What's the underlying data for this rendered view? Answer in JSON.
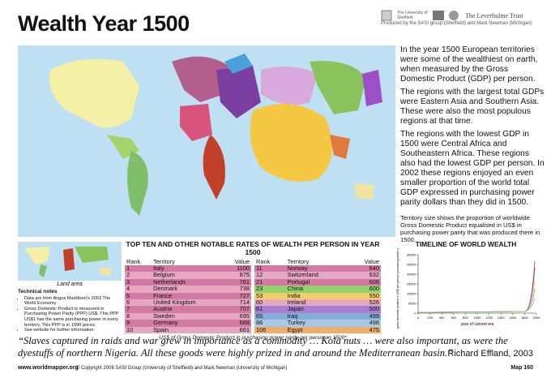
{
  "header": {
    "title": "Wealth Year 1500",
    "logo_1": "The University of Sheffield",
    "logo_2": "The Leverhulme Trust",
    "credits": "Produced by the SASI group (Sheffield) and Mark Newman (Michigan)"
  },
  "description": [
    "In the year 1500 European territories were some of the wealthiest on earth, when measured by the Gross Domestic Product (GDP) per person.",
    "The regions with the largest total GDPs were Eastern Asia and Southern Asia. These were also the most populous regions at that time.",
    "The regions with the lowest GDP in 1500 were Central Africa and Southeastern Africa. These regions also had the lowest GDP per person. In 2002 these regions enjoyed an even smaller proportion of the world total GDP expressed in purchasing power parity dollars than they did in 1500."
  ],
  "map_note": "Territory size shows the proportion of worldwide Gross Domestic Product equalised in US$ in purchasing power parity that was produced there in 1500.",
  "inset": {
    "label": "Land area"
  },
  "technical_notes": {
    "title": "Technical notes",
    "items": [
      "Data are from Angus Maddison's 2003 The World Economy",
      "Gross Domestic Product is measured in Purchasing Power Parity (PPP) US$. This PPP US$1 has the same purchasing power in every territory. This PPP is in 1990 prices.",
      "See website for further information."
    ]
  },
  "table": {
    "title": "TOP TEN AND OTHER NOTABLE RATES OF WEALTH PER PERSON IN YEAR 1500",
    "columns": [
      "Rank",
      "Territory",
      "Value"
    ],
    "rows": [
      {
        "rank": 1,
        "territory": "Italy",
        "value": 1100,
        "color": "#d27aa4"
      },
      {
        "rank": 2,
        "territory": "Belgium",
        "value": 875,
        "color": "#e6a7c3"
      },
      {
        "rank": 3,
        "territory": "Netherlands",
        "value": 761,
        "color": "#d27aa4"
      },
      {
        "rank": 4,
        "territory": "Denmark",
        "value": 738,
        "color": "#e6a7c3"
      },
      {
        "rank": 5,
        "territory": "France",
        "value": 727,
        "color": "#d27aa4"
      },
      {
        "rank": 6,
        "territory": "United Kingdom",
        "value": 714,
        "color": "#e6a7c3"
      },
      {
        "rank": 7,
        "territory": "Austria",
        "value": 707,
        "color": "#d27aa4"
      },
      {
        "rank": 8,
        "territory": "Sweden",
        "value": 695,
        "color": "#e6a7c3"
      },
      {
        "rank": 9,
        "territory": "Germany",
        "value": 688,
        "color": "#d27aa4"
      },
      {
        "rank": 10,
        "territory": "Spain",
        "value": 661,
        "color": "#e6a7c3"
      },
      {
        "rank": 11,
        "territory": "Norway",
        "value": 640,
        "color": "#d27aa4"
      },
      {
        "rank": 12,
        "territory": "Switzerland",
        "value": 632,
        "color": "#e6a7c3"
      },
      {
        "rank": 21,
        "territory": "Portugal",
        "value": 606,
        "color": "#d27aa4"
      },
      {
        "rank": 23,
        "territory": "China",
        "value": 600,
        "color": "#93cf6e"
      },
      {
        "rank": 53,
        "territory": "India",
        "value": 550,
        "color": "#f2cf66"
      },
      {
        "rank": 60,
        "territory": "Ireland",
        "value": 526,
        "color": "#e6a7c3"
      },
      {
        "rank": 61,
        "territory": "Japan",
        "value": 500,
        "color": "#a67fcf"
      },
      {
        "rank": 65,
        "territory": "Iraq",
        "value": 499,
        "color": "#86acd8"
      },
      {
        "rank": 86,
        "territory": "Turkey",
        "value": 496,
        "color": "#a9c8e6"
      },
      {
        "rank": 106,
        "territory": "Egypt",
        "value": 475,
        "color": "#f0ae6a"
      }
    ],
    "footnote": "US$ of Gross Domestic Product in purchasing power parity per person in 1500*"
  },
  "timeline": {
    "title": "TIMELINE OF WORLD WEALTH",
    "y_label": "annual gross domestic product in US$ per person purchasing power parity by region",
    "x_label": "year of current era",
    "yticks": [
      0,
      5000,
      10000,
      15000,
      20000,
      25000,
      30000
    ],
    "ylim": [
      0,
      30000
    ],
    "xticks": [
      0,
      200,
      400,
      600,
      800,
      1000,
      1200,
      1400,
      1600,
      1800,
      2000
    ],
    "xlim": [
      0,
      2000
    ]
  },
  "quote": "“Slaves captured in raids and war grew in importance as a commodity … Kola nuts … were also important, as were the dyestuffs of northern Nigeria. All these goods were highly prized in and around the Mediterranean basin.”",
  "attribution": "Richard Effland, 2003",
  "footer": {
    "url": "www.worldmapper.org",
    "copyright": "© Copyright 2006 SASI Group (University of Sheffield) and Mark Newman (University of Michigan)",
    "map_number": "Map 160"
  }
}
